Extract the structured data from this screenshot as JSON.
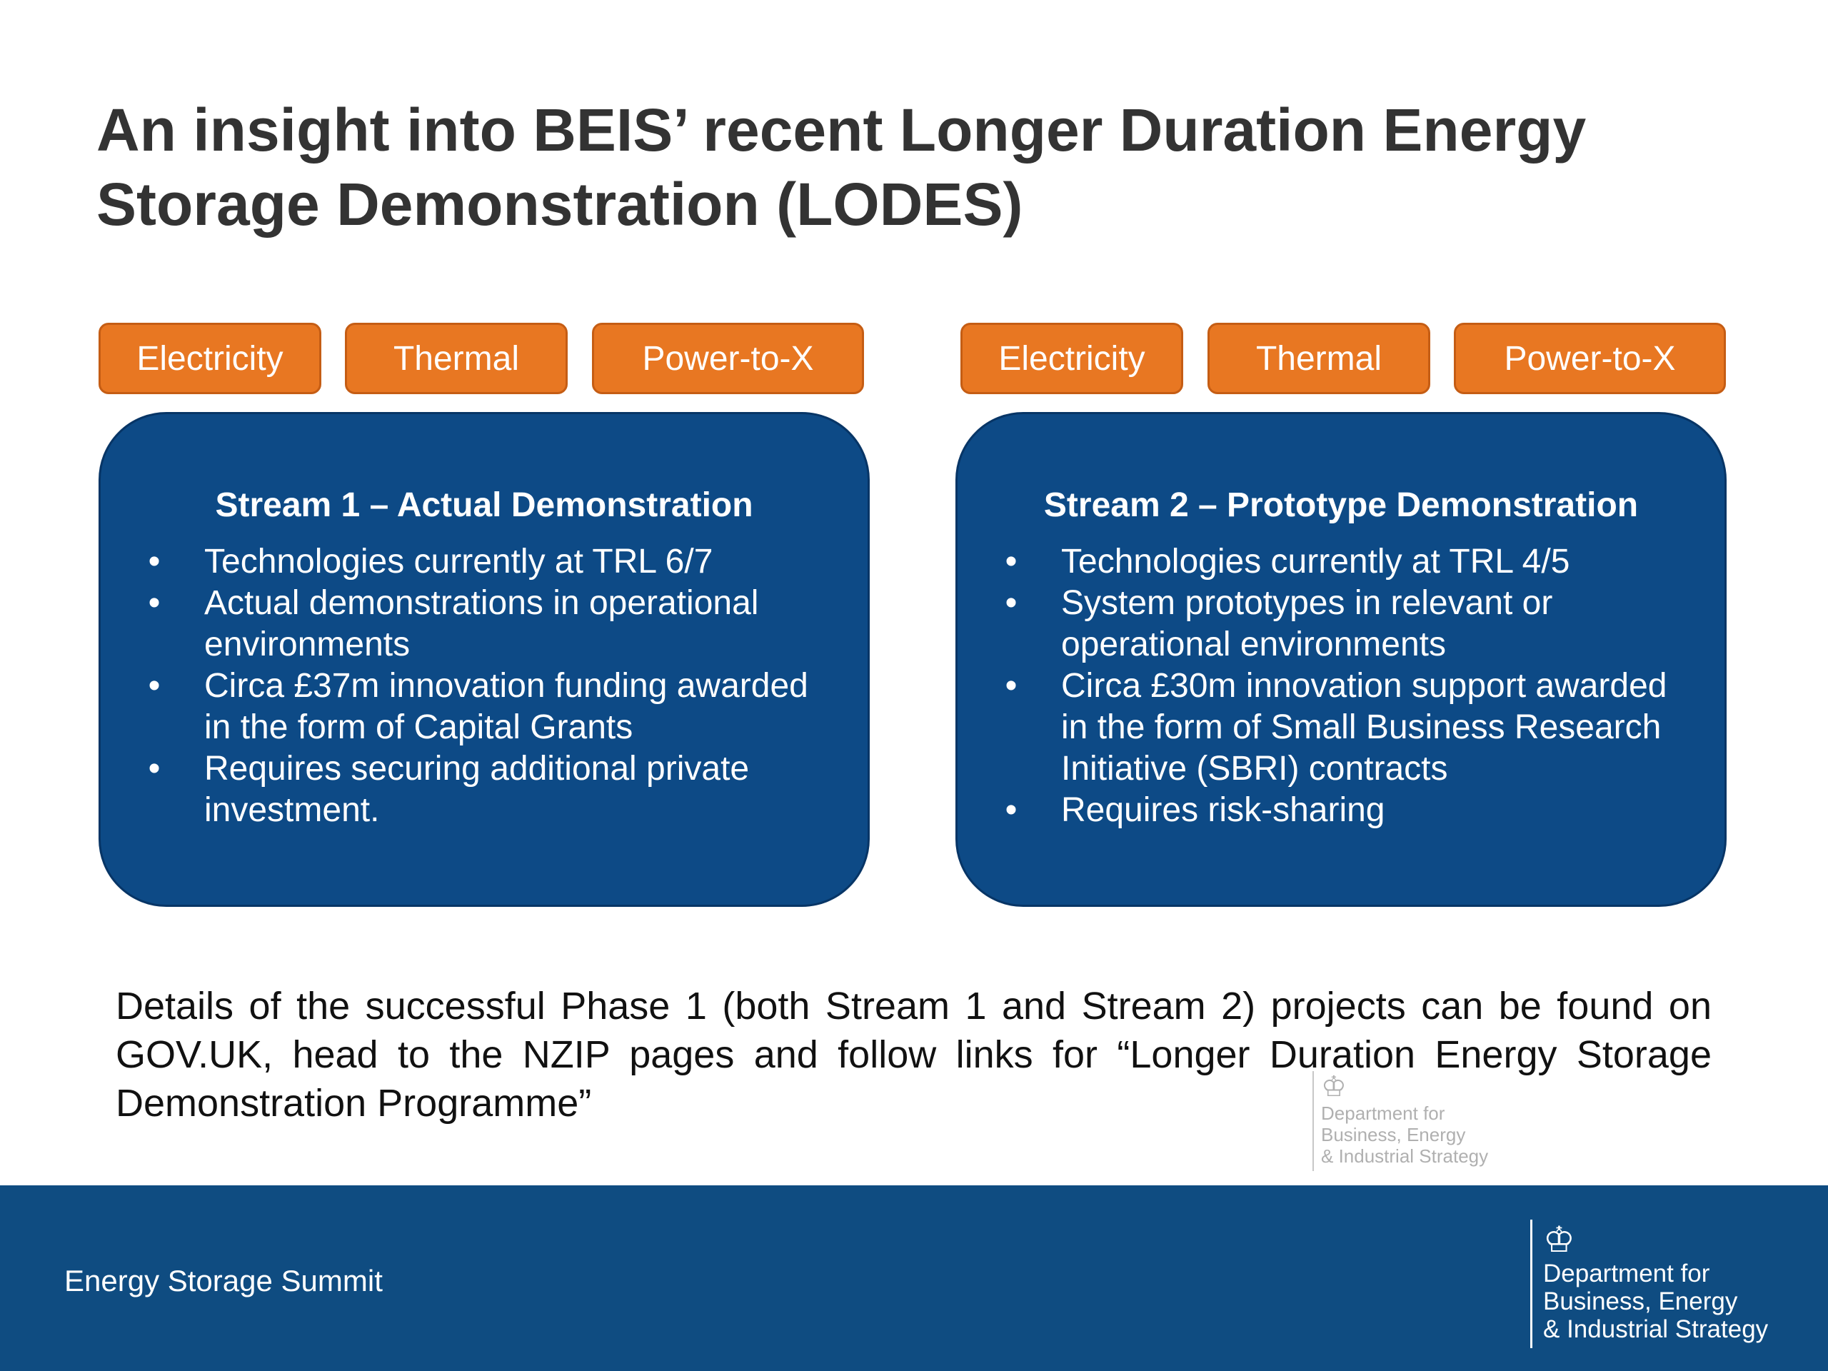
{
  "slide": {
    "title_line1": "An insight into BEIS’ recent Longer Duration Energy",
    "title_line2": "Storage Demonstration (LODES)",
    "stream1": {
      "tags": [
        "Electricity",
        "Thermal",
        "Power-to-X"
      ],
      "heading": "Stream 1 – Actual Demonstration",
      "bullets": [
        "Technologies currently at TRL 6/7",
        "Actual demonstrations in operational environments",
        "Circa £37m innovation funding awarded in the form of Capital Grants",
        "Requires securing additional private investment."
      ]
    },
    "stream2": {
      "tags": [
        "Electricity",
        "Thermal",
        "Power-to-X"
      ],
      "heading": "Stream 2 – Prototype Demonstration",
      "bullets": [
        "Technologies currently at TRL 4/5",
        "System prototypes in relevant or operational environments",
        "Circa £30m innovation support awarded in the form of Small Business Research Initiative (SBRI) contracts",
        "Requires risk-sharing"
      ]
    },
    "summary": "Details of the successful Phase 1 (both Stream 1 and Stream 2) projects can be found on GOV.UK, head to the NZIP pages and follow links for “Longer Duration Energy Storage Demonstration Programme”",
    "bullet_glyph": "•"
  },
  "footer": {
    "label": "Energy Storage Summit",
    "logo": {
      "crest_icon": "royal-crest-icon",
      "line1": "Department for",
      "line2": "Business, Energy",
      "line3": "& Industrial Strategy"
    }
  },
  "colors": {
    "orange_tag": "#e87722",
    "stream_blue": "#0d4a86",
    "footer_blue": "#0f4c81",
    "title_text": "#333333"
  }
}
